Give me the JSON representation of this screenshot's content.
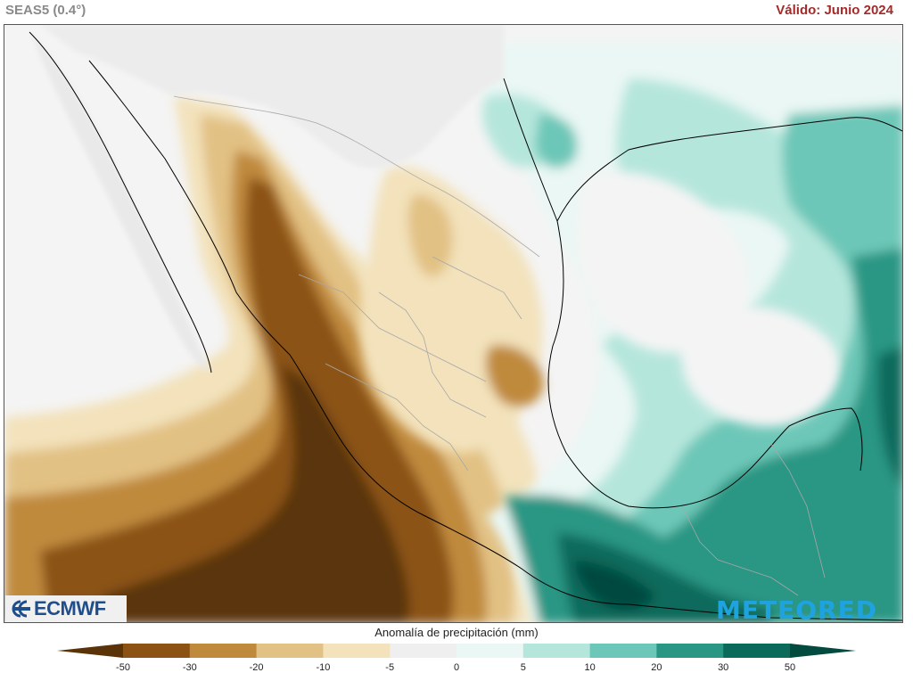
{
  "header": {
    "model_label": "SEAS5 (0.4°)",
    "valid_label": "Válido: Junio 2024"
  },
  "logos": {
    "left": "ECMWF",
    "right": "METEORED"
  },
  "legend": {
    "title": "Anomalía de precipitación (mm)",
    "ticks": [
      "-50",
      "-30",
      "-20",
      "-10",
      "-5",
      "0",
      "5",
      "10",
      "20",
      "30",
      "50"
    ],
    "colors": [
      "#5a3408",
      "#8b5214",
      "#c08a3c",
      "#e2c184",
      "#f3e2bb",
      "#efefef",
      "#eaf7f4",
      "#b5e6dc",
      "#6dc7b8",
      "#2a9684",
      "#0c6a5b",
      "#034a3f"
    ]
  },
  "colors": {
    "land_neutral": "#efefef",
    "ocean_neutral": "#f4f4f4",
    "borders": "#a8a8a8",
    "coast": "#000000"
  }
}
